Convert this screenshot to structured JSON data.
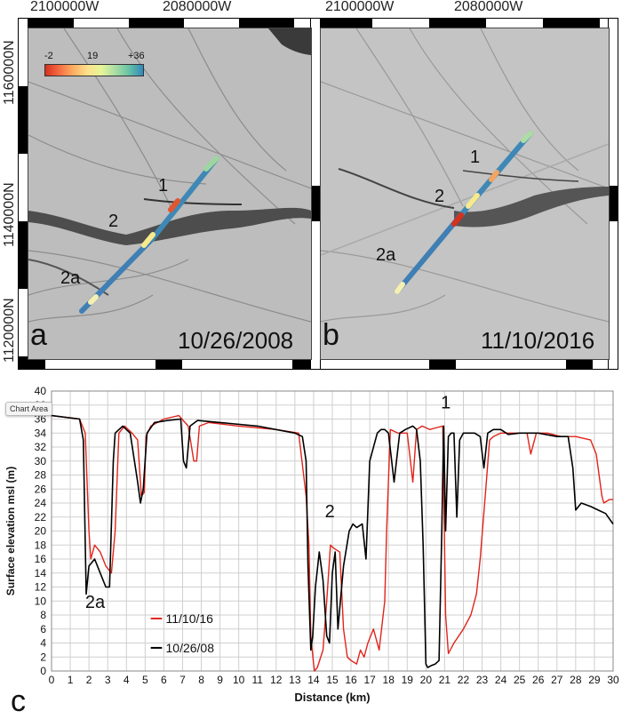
{
  "map": {
    "top_coords": [
      "2100000W",
      "2080000W",
      "2100000W",
      "2080000W"
    ],
    "left_coords": [
      "1160000N",
      "1140000N",
      "1120000N"
    ],
    "colorbar": {
      "min": "-2",
      "mid": "19",
      "max": "+36"
    },
    "panels": [
      {
        "letter": "a",
        "date": "10/26/2008",
        "labels": [
          "1",
          "2",
          "2a"
        ]
      },
      {
        "letter": "b",
        "date": "11/10/2016",
        "labels": [
          "1",
          "2",
          "2a"
        ]
      }
    ]
  },
  "chart": {
    "panel_letter": "c",
    "tooltip": "Chart Area",
    "annotations": [
      "1",
      "2",
      "2a"
    ]
  },
  "chart_data": {
    "type": "line",
    "xlabel": "Distance (km)",
    "ylabel": "Surface elevation msl (m)",
    "xlim": [
      0,
      30
    ],
    "ylim": [
      0,
      40
    ],
    "xticks": [
      0,
      1,
      2,
      3,
      4,
      5,
      6,
      7,
      8,
      9,
      10,
      11,
      12,
      13,
      14,
      15,
      16,
      17,
      18,
      19,
      20,
      21,
      22,
      23,
      24,
      25,
      26,
      27,
      28,
      29,
      30
    ],
    "yticks": [
      0,
      2,
      4,
      6,
      8,
      10,
      12,
      14,
      16,
      18,
      20,
      22,
      24,
      26,
      28,
      30,
      32,
      34,
      36,
      38,
      40
    ],
    "grid": true,
    "legend_position": "bottom-left",
    "series": [
      {
        "name": "11/10/16",
        "color": "#e0241b",
        "x": [
          0,
          1.5,
          1.8,
          2.0,
          2.1,
          2.3,
          2.6,
          2.9,
          3.2,
          3.4,
          3.6,
          3.9,
          4.3,
          4.6,
          4.8,
          4.95,
          5.05,
          5.3,
          6.0,
          6.8,
          7.3,
          7.6,
          7.75,
          7.9,
          8.4,
          10,
          12,
          13.2,
          13.6,
          13.75,
          13.85,
          14.0,
          14.05,
          14.2,
          14.5,
          14.7,
          14.9,
          15.1,
          15.4,
          15.6,
          15.8,
          16.0,
          16.3,
          16.5,
          16.7,
          16.9,
          17.2,
          17.5,
          17.8,
          17.9,
          18.1,
          18.5,
          19.0,
          19.3,
          19.5,
          19.8,
          20.2,
          20.6,
          20.9,
          21.05,
          21.2,
          21.5,
          22.0,
          22.4,
          22.7,
          22.9,
          23.2,
          23.4,
          23.6,
          24.0,
          24.4,
          25.0,
          25.4,
          25.6,
          25.9,
          26.5,
          27.2,
          28.0,
          28.8,
          29.1,
          29.4,
          29.5,
          29.8,
          30.0
        ],
        "y": [
          36.5,
          36,
          34,
          20,
          16,
          18,
          17,
          15,
          14,
          20,
          34,
          35,
          34,
          33,
          25,
          25.5,
          33.5,
          35,
          36,
          36.5,
          35,
          30,
          30,
          35,
          35.5,
          35,
          34.5,
          34,
          25,
          18,
          5,
          1,
          0,
          0.5,
          3,
          10,
          18,
          17.5,
          17,
          6,
          2,
          1.5,
          1,
          3,
          2,
          4,
          6,
          3,
          10,
          20,
          34.5,
          34,
          34,
          27,
          34.5,
          35,
          34.5,
          34.8,
          35,
          8,
          2.5,
          4,
          6,
          8,
          11,
          16,
          26,
          33,
          33.5,
          34,
          34,
          34,
          34,
          31,
          34,
          34,
          33.5,
          33.5,
          33,
          31,
          25,
          24,
          24.5,
          24.5
        ]
      },
      {
        "name": "10/26/08",
        "color": "#000000",
        "x": [
          0,
          1.5,
          1.7,
          1.85,
          2.0,
          2.3,
          2.6,
          2.9,
          3.1,
          3.3,
          3.4,
          3.8,
          4.2,
          4.6,
          4.75,
          4.9,
          5.1,
          5.5,
          6.2,
          6.9,
          7.05,
          7.2,
          7.4,
          7.8,
          9,
          11,
          13.0,
          13.4,
          13.6,
          13.7,
          13.85,
          13.95,
          14.1,
          14.3,
          14.5,
          14.7,
          14.85,
          15.0,
          15.15,
          15.3,
          15.6,
          15.9,
          16.1,
          16.3,
          16.6,
          16.8,
          17.0,
          17.4,
          17.6,
          17.8,
          18.0,
          18.3,
          18.6,
          18.9,
          19.3,
          19.5,
          19.7,
          19.85,
          20.0,
          20.1,
          20.3,
          20.5,
          20.7,
          20.85,
          20.95,
          21.05,
          21.2,
          21.35,
          21.5,
          21.65,
          21.8,
          22.0,
          22.3,
          22.6,
          22.9,
          23.1,
          23.3,
          23.6,
          24.0,
          24.4,
          25.0,
          26.0,
          27.0,
          27.6,
          27.85,
          28.0,
          28.3,
          28.8,
          29.2,
          29.6,
          30.0
        ],
        "y": [
          36.5,
          36,
          33,
          11,
          15,
          16,
          14,
          12,
          12,
          30,
          34,
          35,
          34,
          27,
          24,
          26,
          34,
          35.5,
          35.8,
          36,
          30,
          29,
          35,
          35.8,
          35.5,
          35,
          34,
          33.5,
          30,
          15,
          3,
          5,
          12,
          17,
          13,
          5,
          4,
          14,
          17,
          6,
          15,
          20,
          21,
          20.5,
          21,
          16,
          30,
          34,
          34.5,
          34.5,
          34,
          27,
          34,
          34.5,
          35,
          34.5,
          30,
          18,
          1,
          0.5,
          0.8,
          1,
          1.5,
          20,
          35,
          20,
          33.5,
          34,
          34,
          22,
          33,
          34,
          34,
          34,
          33.5,
          29,
          34,
          34.5,
          34.5,
          33.8,
          34,
          34,
          33.5,
          33.5,
          29,
          23,
          24,
          23.5,
          23,
          22.5,
          21
        ]
      }
    ]
  }
}
